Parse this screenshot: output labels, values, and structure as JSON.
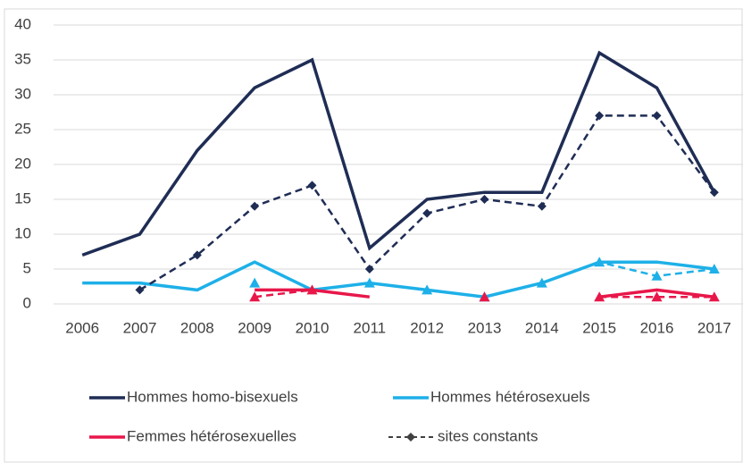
{
  "chart_data": {
    "type": "line",
    "categories": [
      "2006",
      "2007",
      "2008",
      "2009",
      "2010",
      "2011",
      "2012",
      "2013",
      "2014",
      "2015",
      "2016",
      "2017"
    ],
    "series": [
      {
        "name": "Hommes homo-bisexuels",
        "color": "#1f2d55",
        "marker": "diamond",
        "values": [
          7,
          10,
          22,
          31,
          35,
          8,
          15,
          16,
          16,
          36,
          31,
          16
        ],
        "constant_values": [
          null,
          2,
          7,
          14,
          17,
          5,
          13,
          15,
          14,
          27,
          27,
          16
        ]
      },
      {
        "name": "Hommes hétérosexuels",
        "color": "#1eb0e8",
        "marker": "triangle",
        "values": [
          3,
          3,
          2,
          6,
          2,
          3,
          2,
          1,
          3,
          6,
          6,
          5
        ],
        "constant_values": [
          null,
          null,
          null,
          3,
          null,
          3,
          2,
          1,
          3,
          6,
          4,
          5
        ]
      },
      {
        "name": "Femmes hétérosexuelles",
        "color": "#e8174a",
        "marker": "triangle",
        "values": [
          null,
          null,
          null,
          2,
          2,
          1,
          null,
          null,
          null,
          1,
          2,
          1
        ],
        "constant_values": [
          null,
          null,
          null,
          1,
          2,
          null,
          null,
          1,
          null,
          1,
          1,
          1
        ]
      }
    ],
    "constant_legend": "sites constants",
    "ylim": [
      0,
      40
    ],
    "yticks": [
      0,
      5,
      10,
      15,
      20,
      25,
      30,
      35,
      40
    ],
    "grid": true
  }
}
